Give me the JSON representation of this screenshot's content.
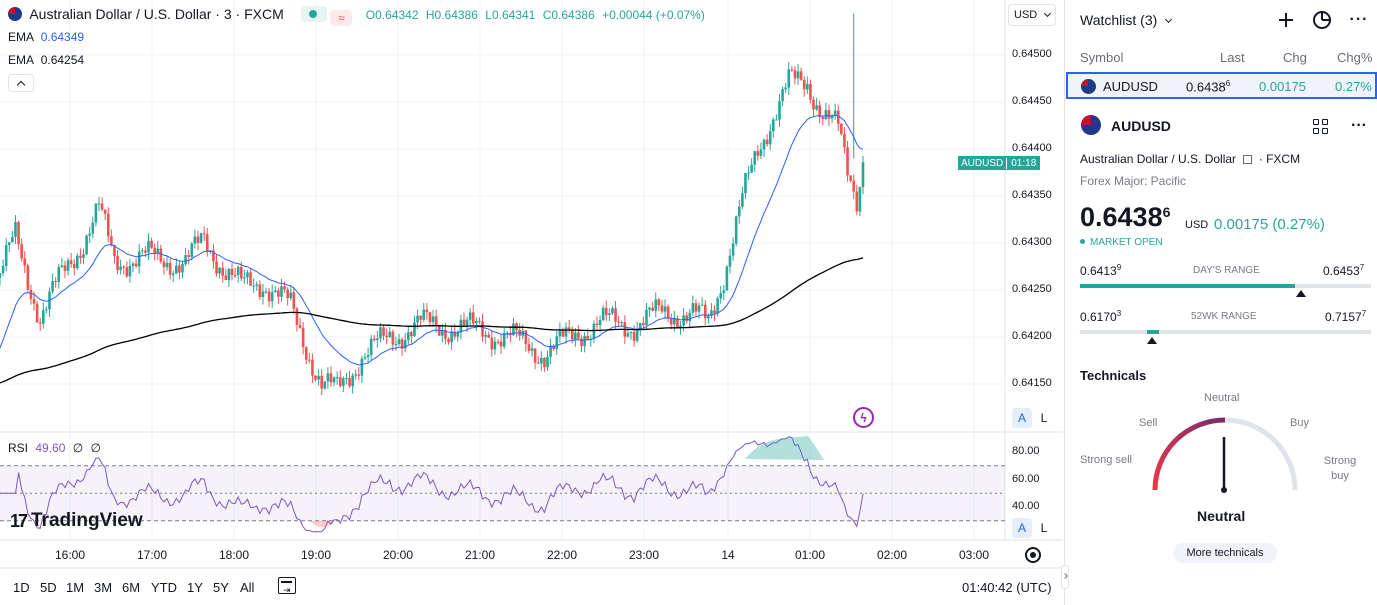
{
  "colors": {
    "up": "#26a69a",
    "down": "#ef5350",
    "ema_fast": "#2962ff",
    "ema_slow": "#000000",
    "rsi": "#7e57c2",
    "accent": "#2962ff",
    "neutral": "#131722"
  },
  "chart": {
    "symbol_title": "Australian Dollar / U.S. Dollar · 3 · FXCM",
    "ohlc": {
      "o_label": "O",
      "o": "0.64342",
      "h_label": "H",
      "h": "0.64386",
      "l_label": "L",
      "l": "0.64341",
      "c_label": "C",
      "c": "0.64386",
      "change": "+0.00044 (+0.07%)"
    },
    "ema1": {
      "label": "EMA",
      "value": "0.64349"
    },
    "ema2": {
      "label": "EMA",
      "value": "0.64254"
    },
    "rsi": {
      "label": "RSI",
      "value": "49.60",
      "extra1": "∅",
      "extra2": "∅"
    },
    "currency": "USD",
    "price_tag": {
      "symbol": "AUDUSD",
      "countdown": "01:18"
    },
    "price_axis": [
      "0.64500",
      "0.64450",
      "0.64400",
      "0.64350",
      "0.64300",
      "0.64250",
      "0.64200",
      "0.64150"
    ],
    "rsi_axis": [
      "80.00",
      "60.00",
      "40.00"
    ],
    "time_axis": [
      "16:00",
      "17:00",
      "18:00",
      "19:00",
      "20:00",
      "21:00",
      "22:00",
      "23:00",
      "14",
      "01:00",
      "02:00",
      "03:00"
    ],
    "ranges": [
      "1D",
      "5D",
      "1M",
      "3M",
      "6M",
      "YTD",
      "1Y",
      "5Y",
      "All"
    ],
    "clock": "01:40:42 (UTC)",
    "brand": "TradingView",
    "auto_label": "A",
    "log_label": "L"
  },
  "chart_data": {
    "type": "line",
    "title": "Australian Dollar / U.S. Dollar · 3 · FXCM",
    "ylim": [
      0.6413,
      0.6452
    ],
    "x": [
      "16:00",
      "17:00",
      "18:00",
      "19:00",
      "20:00",
      "21:00",
      "22:00",
      "23:00",
      "14",
      "01:00"
    ],
    "series": [
      {
        "name": "AUDUSD",
        "values": [
          0.6427,
          0.6432,
          0.6429,
          0.6414,
          0.6421,
          0.6421,
          0.6419,
          0.6422,
          0.6425,
          0.6447
        ]
      },
      {
        "name": "EMA",
        "values": [
          0.6422,
          0.6426,
          0.6428,
          0.6421,
          0.642,
          0.6421,
          0.642,
          0.642,
          0.642,
          0.6435
        ]
      },
      {
        "name": "EMA",
        "values": [
          0.6416,
          0.6418,
          0.642,
          0.6421,
          0.642,
          0.642,
          0.642,
          0.642,
          0.642,
          0.6424
        ]
      }
    ]
  },
  "watchlist": {
    "title": "Watchlist (3)",
    "headers": {
      "symbol": "Symbol",
      "last": "Last",
      "chg": "Chg",
      "chgp": "Chg%"
    },
    "row": {
      "symbol": "AUDUSD",
      "last": "0.6438",
      "last_sup": "6",
      "chg": "0.00175",
      "chgp": "0.27%"
    }
  },
  "details": {
    "symbol": "AUDUSD",
    "name": "Australian Dollar / U.S. Dollar",
    "exchange": "· FXCM",
    "category": "Forex Major: Pacific",
    "price": "0.6438",
    "price_sup": "6",
    "currency": "USD",
    "change": "0.00175 (0.27%)",
    "market_status": "MARKET OPEN",
    "days_range": {
      "label": "DAY'S RANGE",
      "low": "0.6413",
      "low_sup": "9",
      "high": "0.6453",
      "high_sup": "7",
      "position": 0.74,
      "marker": 0.76
    },
    "wk52_range": {
      "label": "52WK RANGE",
      "low": "0.6170",
      "low_sup": "3",
      "high": "0.7157",
      "high_sup": "7",
      "position": 0.27
    },
    "technicals": {
      "title": "Technicals",
      "labels": {
        "neutral_top": "Neutral",
        "sell": "Sell",
        "buy": "Buy",
        "strong_sell": "Strong sell",
        "strong_buy": "Strong buy"
      },
      "result": "Neutral",
      "more": "More technicals"
    }
  }
}
